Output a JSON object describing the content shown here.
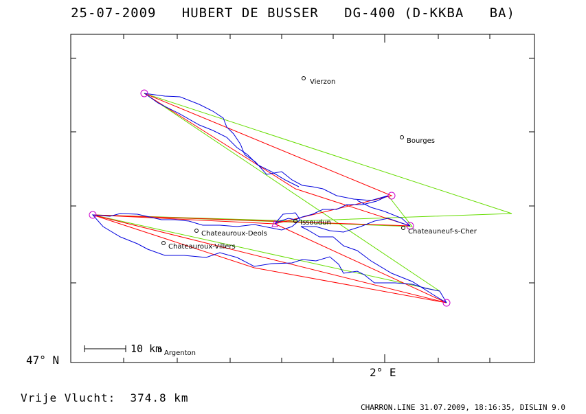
{
  "title": "25-07-2009   HUBERT DE BUSSER   DG-400 (D-KKBA   BA)",
  "lat_label": "47° N",
  "lon_label": "2° E",
  "scale_label": "10 km",
  "footer_distance": "Vrije Vlucht:  374.8 km",
  "footer_info": "CHARRON.LINE 31.07.2009, 18:16:35, DISLIN 9.0",
  "colors": {
    "frame": "#000000",
    "track": "#0000dd",
    "task": "#ff0000",
    "optimized": "#66dd00",
    "turnpoint": "#cc00cc"
  },
  "towns": [
    {
      "name": "Vierzon"
    },
    {
      "name": "Bourges"
    },
    {
      "name": "Issoudun"
    },
    {
      "name": "Chateauneuf-s-Cher"
    },
    {
      "name": "Chateauroux-Deols"
    },
    {
      "name": "Chateauroux-Villers"
    },
    {
      "name": "Argenton"
    }
  ]
}
